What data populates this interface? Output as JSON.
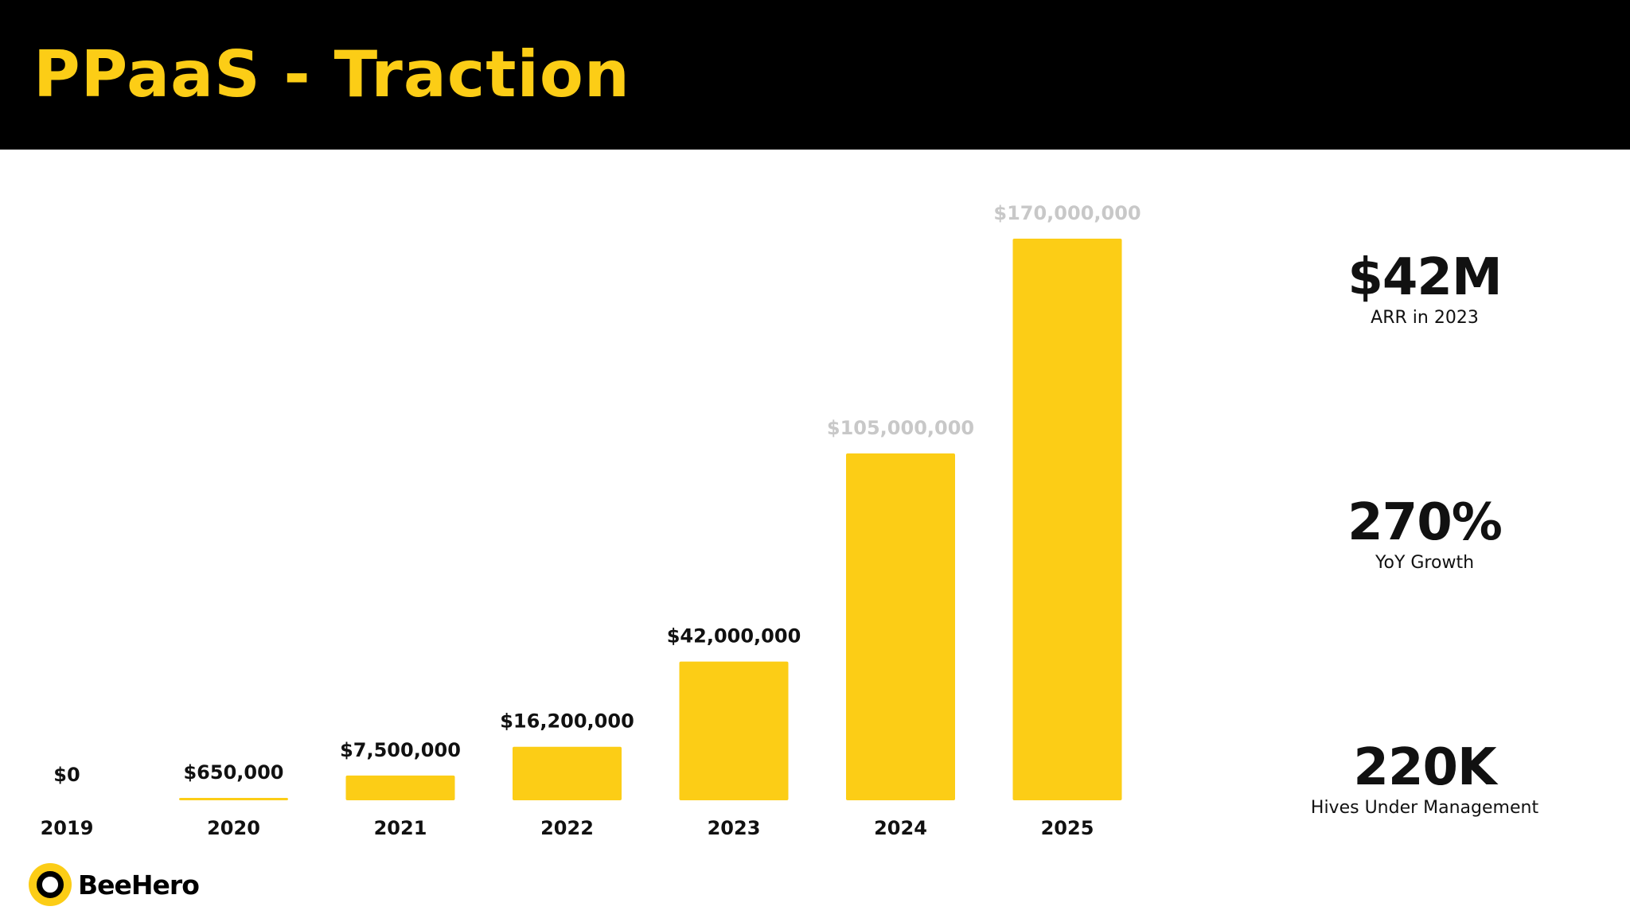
{
  "slide": {
    "title": "PPaaS - Traction"
  },
  "colors": {
    "accent": "#FCCD16",
    "header_bg": "#000000",
    "label_dark": "#111111",
    "label_projected": "#C8C8C8"
  },
  "chart_data": {
    "type": "bar",
    "title": "",
    "xlabel": "",
    "ylabel": "",
    "categories": [
      "2019",
      "2020",
      "2021",
      "2022",
      "2023",
      "2024",
      "2025"
    ],
    "values": [
      0,
      650000,
      7500000,
      16200000,
      42000000,
      105000000,
      170000000
    ],
    "value_labels": [
      "$0",
      "$650,000",
      "$7,500,000",
      "$16,200,000",
      "$42,000,000",
      "$105,000,000",
      "$170,000,000"
    ],
    "projected": [
      false,
      false,
      false,
      false,
      false,
      true,
      true
    ],
    "ylim": [
      0,
      170000000
    ],
    "grid": false,
    "legend": "none"
  },
  "kpis": [
    {
      "value": "$42M",
      "label": "ARR in 2023"
    },
    {
      "value": "270%",
      "label": "YoY Growth"
    },
    {
      "value": "220K",
      "label": "Hives Under Management"
    }
  ],
  "logo": {
    "icon": "beehero-logo-icon",
    "text": "BeeHero"
  }
}
